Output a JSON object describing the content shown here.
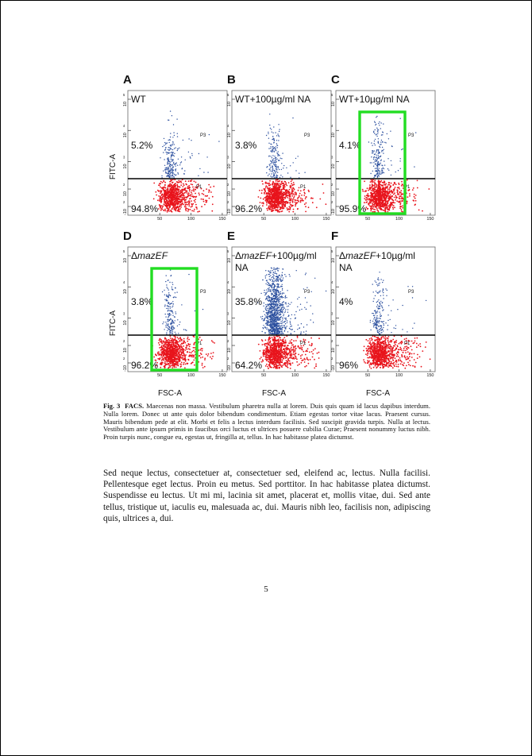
{
  "figure": {
    "panels": [
      {
        "letter": "A",
        "label_main": "WT",
        "label_italic": "",
        "label_suffix": "",
        "label_line2": "",
        "upper_pct": "5.2%",
        "lower_pct": "94.8%",
        "has_gate": false,
        "blue_density": 1.0
      },
      {
        "letter": "B",
        "label_main": "WT+100µg/ml NA",
        "label_italic": "",
        "label_suffix": "",
        "label_line2": "",
        "upper_pct": "3.8%",
        "lower_pct": "96.2%",
        "has_gate": false,
        "blue_density": 0.8
      },
      {
        "letter": "C",
        "label_main": "WT+10µg/ml NA",
        "label_italic": "",
        "label_suffix": "",
        "label_line2": "",
        "upper_pct": "4.1%",
        "lower_pct": "95.9%",
        "has_gate": true,
        "blue_density": 0.9
      },
      {
        "letter": "D",
        "label_main": "Δ",
        "label_italic": "mazEF",
        "label_suffix": "",
        "label_line2": "",
        "upper_pct": "3.8%",
        "lower_pct": "96.2%",
        "has_gate": true,
        "blue_density": 0.8
      },
      {
        "letter": "E",
        "label_main": "Δ",
        "label_italic": "mazEF",
        "label_suffix": "+100µg/ml",
        "label_line2": "NA",
        "upper_pct": "35.8%",
        "lower_pct": "64.2%",
        "has_gate": false,
        "blue_density": 5.0
      },
      {
        "letter": "F",
        "label_main": "Δ",
        "label_italic": "mazEF",
        "label_suffix": "+10µg/ml",
        "label_line2": "NA",
        "upper_pct": "4%",
        "lower_pct": "96%",
        "has_gate": false,
        "blue_density": 0.85
      }
    ],
    "gate_labels": {
      "upper": "P3",
      "lower": "P1"
    },
    "y_axis_label": "FITC-A",
    "x_axis_label": "FSC-A",
    "x_ticks": [
      "50",
      "100",
      "150"
    ],
    "y_ticks": [
      "10",
      "10",
      "10",
      "10",
      "-10"
    ],
    "y_tick_exps": [
      "5",
      "4",
      "3",
      "2",
      "2"
    ],
    "colors": {
      "upper_population": "#2b4f9e",
      "lower_population": "#e8141c",
      "gate": "#22dd22"
    }
  },
  "caption": {
    "label": "Fig. 3",
    "title": "FACS.",
    "text": "Maecenas non massa. Vestibulum pharetra nulla at lorem. Duis quis quam id lacus dapibus interdum. Nulla lorem. Donec ut ante quis dolor bibendum condimentum. Etiam egestas tortor vitae lacus. Praesent cursus. Mauris bibendum pede at elit. Morbi et felis a lectus interdum facilisis. Sed suscipit gravida turpis. Nulla at lectus. Vestibulum ante ipsum primis in faucibus orci luctus et ultrices posuere cubilia Curae; Praesent nonummy luctus nibh. Proin turpis nunc, congue eu, egestas ut, fringilla at, tellus. In hac habitasse platea dictumst."
  },
  "body": {
    "paragraph": "Sed neque lectus, consectetuer at, consectetuer sed, eleifend ac, lectus. Nulla facilisi. Pellentesque eget lectus. Proin eu metus. Sed porttitor. In hac habitasse platea dictumst. Suspendisse eu lectus. Ut mi mi, lacinia sit amet, placerat et, mollis vitae, dui. Sed ante tellus, tristique ut, iaculis eu, malesuada ac, dui. Mauris nibh leo, facilisis non, adipiscing quis, ultrices a, dui."
  },
  "page_number": "5"
}
